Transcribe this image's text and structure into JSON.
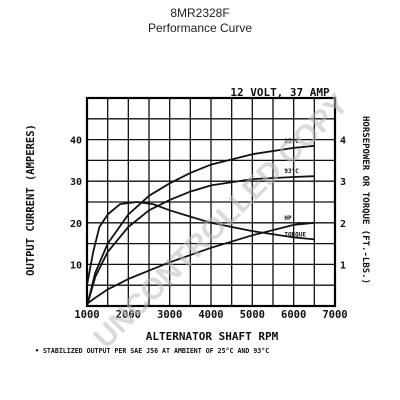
{
  "title_line1": "8MR2328F",
  "title_line2": "Performance Curve",
  "watermark": "UNCONTROLLED COPY",
  "chart_data": {
    "type": "line",
    "chart_title": "12 VOLT, 37 AMP",
    "xlabel": "ALTERNATOR SHAFT RPM",
    "ylabel_left": "OUTPUT CURRENT (AMPERES)",
    "ylabel_right": "HORSEPOWER OR TORQUE (FT.-LBS.)",
    "footnote": "• STABILIZED OUTPUT PER SAE J56 AT AMBIENT OF 25°C AND 93°C",
    "xlim": [
      1000,
      7000
    ],
    "ylim_left": [
      0,
      50
    ],
    "ylim_right": [
      0,
      5
    ],
    "x_ticks": [
      "1000",
      "2000",
      "3000",
      "4000",
      "5000",
      "6000",
      "7000"
    ],
    "y_ticks_left": [
      "10",
      "20",
      "30",
      "40"
    ],
    "y_ticks_right": [
      "1",
      "2",
      "3",
      "4"
    ],
    "grid": true,
    "series": [
      {
        "name": "25°C",
        "axis": "left",
        "x": [
          1000,
          1200,
          1500,
          2000,
          2500,
          3000,
          3500,
          4000,
          5000,
          6000,
          6500
        ],
        "y": [
          0,
          8,
          15,
          22,
          26.5,
          29.5,
          32,
          34,
          36.5,
          38,
          38.5
        ]
      },
      {
        "name": "93°C",
        "axis": "left",
        "x": [
          1000,
          1200,
          1500,
          2000,
          2500,
          3000,
          3500,
          4000,
          5000,
          6000,
          6500
        ],
        "y": [
          0,
          7,
          13,
          19,
          23,
          25.5,
          27.5,
          29,
          30.5,
          31,
          31.2
        ]
      },
      {
        "name": "HP",
        "axis": "right",
        "x": [
          1000,
          1200,
          1500,
          2000,
          2500,
          3000,
          4000,
          5000,
          6000,
          6500
        ],
        "y": [
          0.05,
          0.2,
          0.4,
          0.65,
          0.85,
          1.05,
          1.4,
          1.7,
          1.95,
          2.0
        ]
      },
      {
        "name": "TORQUE",
        "axis": "right",
        "x": [
          1000,
          1150,
          1300,
          1500,
          1800,
          2200,
          2600,
          3000,
          3500,
          4000,
          5000,
          6000,
          6500
        ],
        "y": [
          0.5,
          1.3,
          1.9,
          2.2,
          2.45,
          2.5,
          2.45,
          2.3,
          2.15,
          2.0,
          1.8,
          1.65,
          1.6
        ]
      }
    ]
  }
}
